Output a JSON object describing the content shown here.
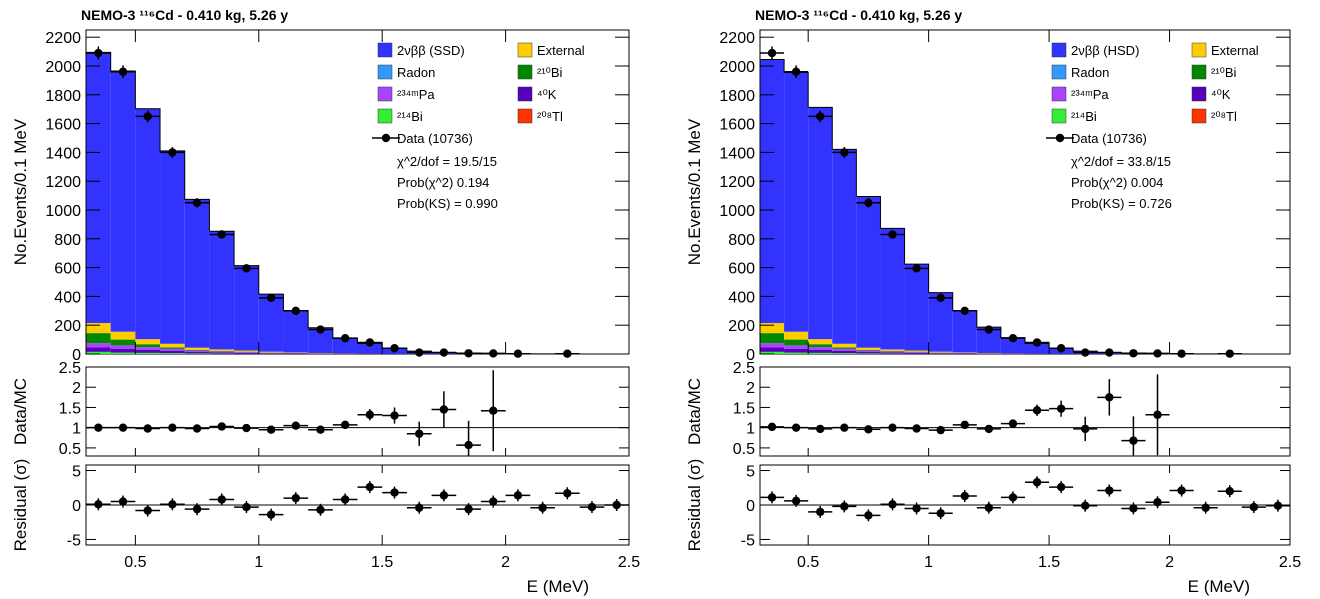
{
  "chart_data": [
    {
      "type": "histogram",
      "title": "NEMO-3 ¹¹⁶Cd - 0.410 kg, 5.26 y",
      "xlabel": "E (MeV)",
      "xlim": [
        0.3,
        2.5
      ],
      "xticks": [
        "0.5",
        "1",
        "1.5",
        "2",
        "2.5"
      ],
      "bin_edges": [
        0.3,
        0.4,
        0.5,
        0.6,
        0.7,
        0.8,
        0.9,
        1.0,
        1.1,
        1.2,
        1.3,
        1.4,
        1.5,
        1.6,
        1.7,
        1.8,
        1.9,
        2.0,
        2.1,
        2.2,
        2.3,
        2.4,
        2.5
      ],
      "main": {
        "ylabel": "No.Events/0.1 MeV",
        "ylim": [
          0,
          2250
        ],
        "yticks": [
          "0",
          "200",
          "400",
          "600",
          "800",
          "1000",
          "1200",
          "1400",
          "1600",
          "1800",
          "2000",
          "2200"
        ],
        "legend": [
          {
            "label": "2νββ (SSD)",
            "color": "#3333ff"
          },
          {
            "label": "External",
            "color": "#ffcc00"
          },
          {
            "label": "Radon",
            "color": "#3399ff"
          },
          {
            "label": "²¹⁰Bi",
            "color": "#008800"
          },
          {
            "label": "²³⁴ᵐPa",
            "color": "#aa44ff"
          },
          {
            "label": "⁴⁰K",
            "color": "#5500bb"
          },
          {
            "label": "²¹⁴Bi",
            "color": "#33ee33"
          },
          {
            "label": "²⁰⁸Tl",
            "color": "#ff3300"
          }
        ],
        "data_label": "Data (10736)",
        "stats": [
          "χ^2/dof = 19.5/15",
          "Prob(χ^2) 0.194",
          "Prob(KS) = 0.990"
        ],
        "mc_2nubb": [
          1880,
          1810,
          1600,
          1340,
          1030,
          820,
          590,
          400,
          290,
          175,
          105,
          70,
          40,
          20,
          10,
          6,
          3,
          2,
          1,
          0,
          0,
          0
        ],
        "mc_external": [
          70,
          55,
          35,
          25,
          15,
          10,
          8,
          6,
          4,
          3,
          2,
          1,
          1,
          0,
          0,
          0,
          0,
          0,
          0,
          0,
          0,
          0
        ],
        "mc_210bi": [
          70,
          40,
          20,
          10,
          5,
          3,
          2,
          1,
          0,
          0,
          0,
          0,
          0,
          0,
          0,
          0,
          0,
          0,
          0,
          0,
          0,
          0
        ],
        "mc_234mpa": [
          30,
          25,
          20,
          15,
          10,
          8,
          6,
          4,
          3,
          2,
          1,
          1,
          0,
          0,
          0,
          0,
          0,
          0,
          0,
          0,
          0,
          0
        ],
        "mc_40k": [
          30,
          25,
          20,
          15,
          10,
          8,
          6,
          4,
          3,
          2,
          1,
          1,
          0,
          0,
          0,
          0,
          0,
          0,
          0,
          0,
          0,
          0
        ],
        "mc_other": [
          15,
          10,
          8,
          6,
          4,
          3,
          2,
          1,
          1,
          0,
          0,
          0,
          0,
          0,
          0,
          0,
          0,
          0,
          0,
          0,
          0,
          0
        ],
        "data_x": [
          0.35,
          0.45,
          0.55,
          0.65,
          0.75,
          0.85,
          0.95,
          1.05,
          1.15,
          1.25,
          1.35,
          1.45,
          1.55,
          1.65,
          1.75,
          1.85,
          1.95,
          2.05,
          2.25
        ],
        "data_y": [
          2090,
          1960,
          1650,
          1400,
          1050,
          830,
          595,
          390,
          300,
          170,
          110,
          80,
          40,
          10,
          10,
          5,
          4,
          2,
          2
        ]
      },
      "ratio": {
        "ylabel": "Data/MC",
        "ylim": [
          0.3,
          2.5
        ],
        "yticks": [
          "0.5",
          "1",
          "1.5",
          "2",
          "2.5"
        ],
        "ref": 1,
        "x": [
          0.35,
          0.45,
          0.55,
          0.65,
          0.75,
          0.85,
          0.95,
          1.05,
          1.15,
          1.25,
          1.35,
          1.45,
          1.55,
          1.65,
          1.75,
          1.85,
          1.95
        ],
        "y": [
          1.0,
          1.0,
          0.98,
          1.0,
          0.98,
          1.03,
          0.99,
          0.95,
          1.05,
          0.95,
          1.07,
          1.32,
          1.3,
          0.85,
          1.45,
          0.57,
          1.42
        ],
        "err": [
          0.03,
          0.03,
          0.03,
          0.03,
          0.04,
          0.04,
          0.05,
          0.06,
          0.07,
          0.08,
          0.1,
          0.14,
          0.2,
          0.3,
          0.45,
          0.6,
          1.0
        ]
      },
      "residual": {
        "ylabel": "Residual (σ)",
        "ylim": [
          -5.8,
          5.8
        ],
        "yticks": [
          "-5",
          "0",
          "5"
        ],
        "x": [
          0.35,
          0.45,
          0.55,
          0.65,
          0.75,
          0.85,
          0.95,
          1.05,
          1.15,
          1.25,
          1.35,
          1.45,
          1.55,
          1.65,
          1.75,
          1.85,
          1.95,
          2.05,
          2.15,
          2.25,
          2.35,
          2.45
        ],
        "y": [
          0.1,
          0.5,
          -0.8,
          0.1,
          -0.6,
          0.8,
          -0.3,
          -1.4,
          1.0,
          -0.7,
          0.8,
          2.6,
          1.8,
          -0.4,
          1.4,
          -0.6,
          0.5,
          1.4,
          -0.4,
          1.7,
          -0.3,
          0.0
        ]
      }
    },
    {
      "type": "histogram",
      "title": "NEMO-3 ¹¹⁶Cd - 0.410 kg, 5.26 y",
      "xlabel": "E (MeV)",
      "xlim": [
        0.3,
        2.5
      ],
      "xticks": [
        "0.5",
        "1",
        "1.5",
        "2",
        "2.5"
      ],
      "bin_edges": [
        0.3,
        0.4,
        0.5,
        0.6,
        0.7,
        0.8,
        0.9,
        1.0,
        1.1,
        1.2,
        1.3,
        1.4,
        1.5,
        1.6,
        1.7,
        1.8,
        1.9,
        2.0,
        2.1,
        2.2,
        2.3,
        2.4,
        2.5
      ],
      "main": {
        "ylabel": "No.Events/0.1 MeV",
        "ylim": [
          0,
          2250
        ],
        "yticks": [
          "0",
          "200",
          "400",
          "600",
          "800",
          "1000",
          "1200",
          "1400",
          "1600",
          "1800",
          "2000",
          "2200"
        ],
        "legend": [
          {
            "label": "2νββ (HSD)",
            "color": "#3333ff"
          },
          {
            "label": "External",
            "color": "#ffcc00"
          },
          {
            "label": "Radon",
            "color": "#3399ff"
          },
          {
            "label": "²¹⁰Bi",
            "color": "#008800"
          },
          {
            "label": "²³⁴ᵐPa",
            "color": "#aa44ff"
          },
          {
            "label": "⁴⁰K",
            "color": "#5500bb"
          },
          {
            "label": "²¹⁴Bi",
            "color": "#33ee33"
          },
          {
            "label": "²⁰⁸Tl",
            "color": "#ff3300"
          }
        ],
        "data_label": "Data (10736)",
        "stats": [
          "χ^2/dof = 33.8/15",
          "Prob(χ^2) 0.004",
          "Prob(KS) = 0.726"
        ],
        "mc_2nubb": [
          1830,
          1800,
          1610,
          1350,
          1050,
          840,
          600,
          410,
          290,
          180,
          110,
          70,
          40,
          20,
          10,
          6,
          3,
          2,
          1,
          0,
          0,
          0
        ],
        "mc_external": [
          70,
          55,
          35,
          25,
          15,
          10,
          8,
          6,
          4,
          3,
          2,
          1,
          1,
          0,
          0,
          0,
          0,
          0,
          0,
          0,
          0,
          0
        ],
        "mc_210bi": [
          70,
          40,
          20,
          10,
          5,
          3,
          2,
          1,
          0,
          0,
          0,
          0,
          0,
          0,
          0,
          0,
          0,
          0,
          0,
          0,
          0,
          0
        ],
        "mc_234mpa": [
          30,
          25,
          20,
          15,
          10,
          8,
          6,
          4,
          3,
          2,
          1,
          1,
          0,
          0,
          0,
          0,
          0,
          0,
          0,
          0,
          0,
          0
        ],
        "mc_40k": [
          30,
          25,
          20,
          15,
          10,
          8,
          6,
          4,
          3,
          2,
          1,
          1,
          0,
          0,
          0,
          0,
          0,
          0,
          0,
          0,
          0,
          0
        ],
        "mc_other": [
          15,
          10,
          8,
          6,
          4,
          3,
          2,
          1,
          1,
          0,
          0,
          0,
          0,
          0,
          0,
          0,
          0,
          0,
          0,
          0,
          0,
          0
        ],
        "data_x": [
          0.35,
          0.45,
          0.55,
          0.65,
          0.75,
          0.85,
          0.95,
          1.05,
          1.15,
          1.25,
          1.35,
          1.45,
          1.55,
          1.65,
          1.75,
          1.85,
          1.95,
          2.05,
          2.25
        ],
        "data_y": [
          2090,
          1960,
          1650,
          1400,
          1050,
          830,
          595,
          390,
          300,
          170,
          110,
          80,
          40,
          10,
          10,
          5,
          4,
          2,
          2
        ]
      },
      "ratio": {
        "ylabel": "Data/MC",
        "ylim": [
          0.3,
          2.5
        ],
        "yticks": [
          "0.5",
          "1",
          "1.5",
          "2",
          "2.5"
        ],
        "ref": 1,
        "x": [
          0.35,
          0.45,
          0.55,
          0.65,
          0.75,
          0.85,
          0.95,
          1.05,
          1.15,
          1.25,
          1.35,
          1.45,
          1.55,
          1.65,
          1.75,
          1.85,
          1.95
        ],
        "y": [
          1.02,
          1.0,
          0.97,
          1.0,
          0.96,
          1.0,
          0.98,
          0.94,
          1.07,
          0.97,
          1.1,
          1.43,
          1.47,
          0.97,
          1.75,
          0.68,
          1.32
        ],
        "err": [
          0.03,
          0.03,
          0.03,
          0.03,
          0.04,
          0.04,
          0.05,
          0.06,
          0.07,
          0.08,
          0.1,
          0.14,
          0.2,
          0.3,
          0.45,
          0.6,
          1.0
        ]
      },
      "residual": {
        "ylabel": "Residual (σ)",
        "ylim": [
          -5.8,
          5.8
        ],
        "yticks": [
          "-5",
          "0",
          "5"
        ],
        "x": [
          0.35,
          0.45,
          0.55,
          0.65,
          0.75,
          0.85,
          0.95,
          1.05,
          1.15,
          1.25,
          1.35,
          1.45,
          1.55,
          1.65,
          1.75,
          1.85,
          1.95,
          2.05,
          2.15,
          2.25,
          2.35,
          2.45
        ],
        "y": [
          1.1,
          0.6,
          -1.0,
          -0.2,
          -1.5,
          0.1,
          -0.5,
          -1.2,
          1.3,
          -0.4,
          1.1,
          3.3,
          2.6,
          -0.1,
          2.1,
          -0.5,
          0.4,
          2.1,
          -0.4,
          2.0,
          -0.3,
          -0.1
        ]
      }
    }
  ]
}
